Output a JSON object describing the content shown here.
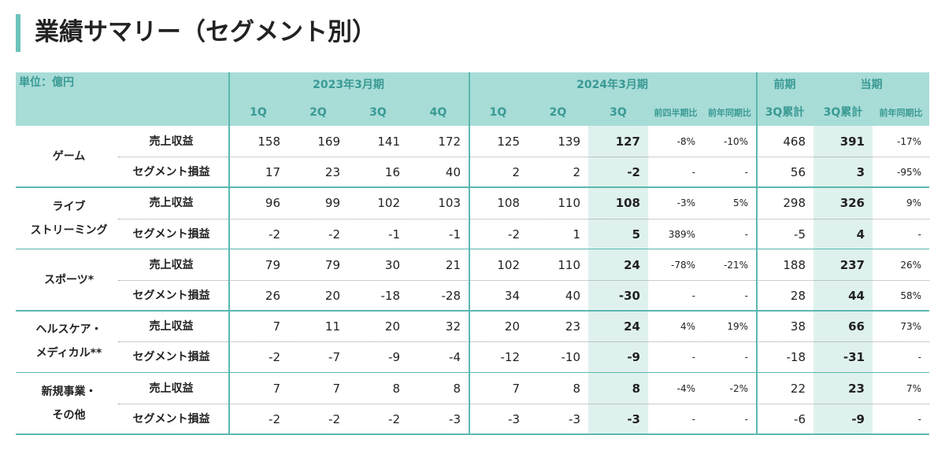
{
  "title": "業績サマリー（セグメント別）",
  "header": {
    "unit": "単位：億円",
    "fy2023": "2023年3月期",
    "fy2024": "2024年3月期",
    "prev": "前期",
    "curr": "当期",
    "columns": [
      "1Q",
      "2Q",
      "3Q",
      "4Q",
      "1Q",
      "2Q",
      "3Q",
      "前四半期比",
      "前年同期比",
      "3Q累計",
      "3Q累計",
      "前年同期比"
    ]
  },
  "segments": [
    {
      "name": [
        "ゲーム"
      ],
      "rows": [
        {
          "metric": "売上収益",
          "cells": [
            "158",
            "169",
            "141",
            "172",
            "125",
            "139",
            "127",
            "-8%",
            "-10%",
            "468",
            "391",
            "-17%"
          ]
        },
        {
          "metric": "セグメント損益",
          "cells": [
            "17",
            "23",
            "16",
            "40",
            "2",
            "2",
            "-2",
            "-",
            "-",
            "56",
            "3",
            "-95%"
          ]
        }
      ]
    },
    {
      "name": [
        "ライブ",
        "ストリーミング"
      ],
      "rows": [
        {
          "metric": "売上収益",
          "cells": [
            "96",
            "99",
            "102",
            "103",
            "108",
            "110",
            "108",
            "-3%",
            "5%",
            "298",
            "326",
            "9%"
          ]
        },
        {
          "metric": "セグメント損益",
          "cells": [
            "-2",
            "-2",
            "-1",
            "-1",
            "-2",
            "1",
            "5",
            "389%",
            "-",
            "-5",
            "4",
            "-"
          ]
        }
      ]
    },
    {
      "name": [
        "スポーツ*"
      ],
      "rows": [
        {
          "metric": "売上収益",
          "cells": [
            "79",
            "79",
            "30",
            "21",
            "102",
            "110",
            "24",
            "-78%",
            "-21%",
            "188",
            "237",
            "26%"
          ]
        },
        {
          "metric": "セグメント損益",
          "cells": [
            "26",
            "20",
            "-18",
            "-28",
            "34",
            "40",
            "-30",
            "-",
            "-",
            "28",
            "44",
            "58%"
          ]
        }
      ]
    },
    {
      "name": [
        "ヘルスケア・",
        "メディカル**"
      ],
      "rows": [
        {
          "metric": "売上収益",
          "cells": [
            "7",
            "11",
            "20",
            "32",
            "20",
            "23",
            "24",
            "4%",
            "19%",
            "38",
            "66",
            "73%"
          ]
        },
        {
          "metric": "セグメント損益",
          "cells": [
            "-2",
            "-7",
            "-9",
            "-4",
            "-12",
            "-10",
            "-9",
            "-",
            "-",
            "-18",
            "-31",
            "-"
          ]
        }
      ]
    },
    {
      "name": [
        "新規事業・",
        "その他"
      ],
      "rows": [
        {
          "metric": "売上収益",
          "cells": [
            "7",
            "7",
            "8",
            "8",
            "7",
            "8",
            "8",
            "-4%",
            "-2%",
            "22",
            "23",
            "7%"
          ]
        },
        {
          "metric": "セグメント損益",
          "cells": [
            "-2",
            "-2",
            "-2",
            "-3",
            "-3",
            "-3",
            "-3",
            "-",
            "-",
            "-6",
            "-9",
            "-"
          ]
        }
      ]
    }
  ]
}
